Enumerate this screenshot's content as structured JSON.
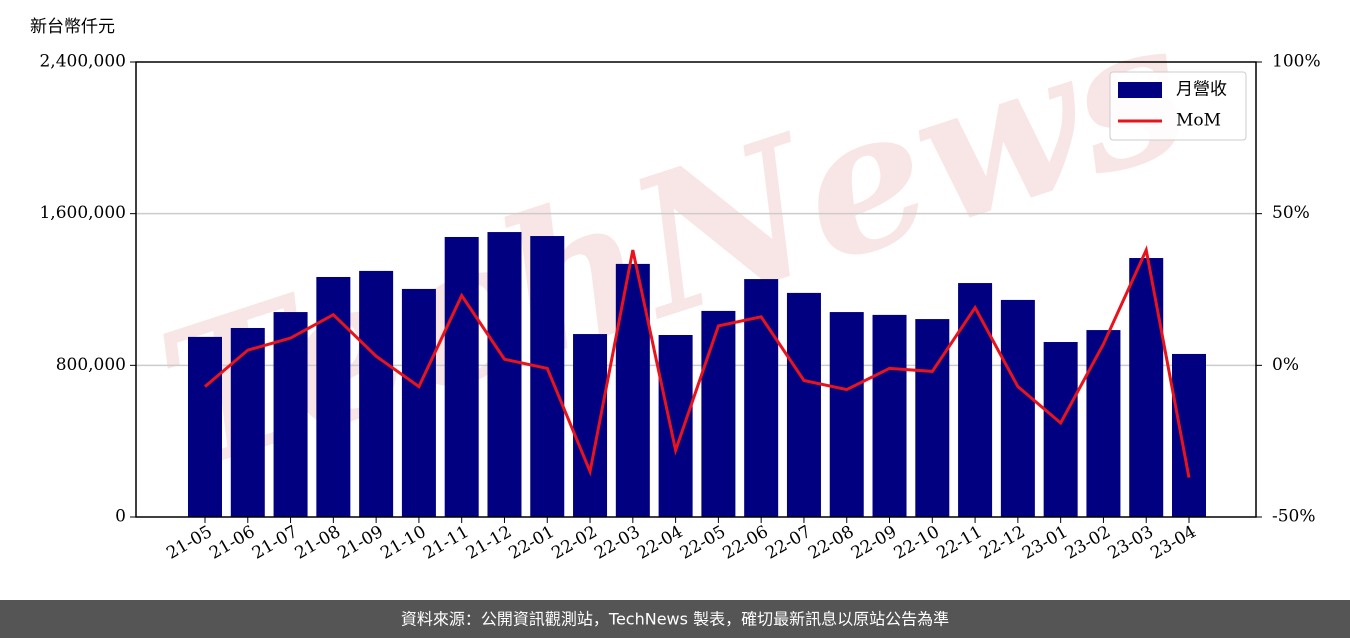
{
  "chart_data": {
    "type": "bar-line",
    "ylabel": "新台幣仟元",
    "watermark": "TechNews",
    "footer": "資料來源：公開資訊觀測站，TechNews 製表，確切最新訊息以原站公告為準",
    "categories": [
      "21-05",
      "21-06",
      "21-07",
      "21-08",
      "21-09",
      "21-10",
      "21-11",
      "21-12",
      "22-01",
      "22-02",
      "22-03",
      "22-04",
      "22-05",
      "22-06",
      "22-07",
      "22-08",
      "22-09",
      "22-10",
      "22-11",
      "22-12",
      "23-01",
      "23-02",
      "23-03",
      "23-04"
    ],
    "series": [
      {
        "name": "月營收",
        "color": "#000080",
        "type": "bar",
        "values": [
          950000,
          997000,
          1081000,
          1266000,
          1298000,
          1203000,
          1477000,
          1503000,
          1482000,
          965000,
          1335000,
          960000,
          1087000,
          1255000,
          1182000,
          1081000,
          1066000,
          1044000,
          1234000,
          1145000,
          923000,
          986000,
          1366000,
          860000
        ]
      },
      {
        "name": "MoM",
        "color": "#e8131b",
        "type": "line",
        "axis": "y2",
        "values": [
          -7,
          5,
          9,
          16.7,
          3,
          -7,
          23,
          2,
          -1,
          -35,
          38,
          -28,
          13,
          16,
          -5,
          -8,
          -1,
          -2,
          19,
          -7,
          -19,
          7,
          38,
          -37
        ]
      }
    ],
    "ylim": [
      0,
      2400000
    ],
    "yticks": [
      0,
      {
        "value": 800000,
        "label": "800,000"
      },
      {
        "value": 1600000,
        "label": "1,600,000"
      },
      {
        "value": 2400000,
        "label": "2,400,000"
      }
    ],
    "y2lim": [
      -50,
      100
    ],
    "y2ticks": [
      {
        "value": -50,
        "label": "-50%"
      },
      {
        "value": 0,
        "label": "0%"
      },
      {
        "value": 50,
        "label": "50%"
      },
      {
        "value": 100,
        "label": "100%"
      }
    ],
    "grid": true,
    "legend": "upper right"
  }
}
